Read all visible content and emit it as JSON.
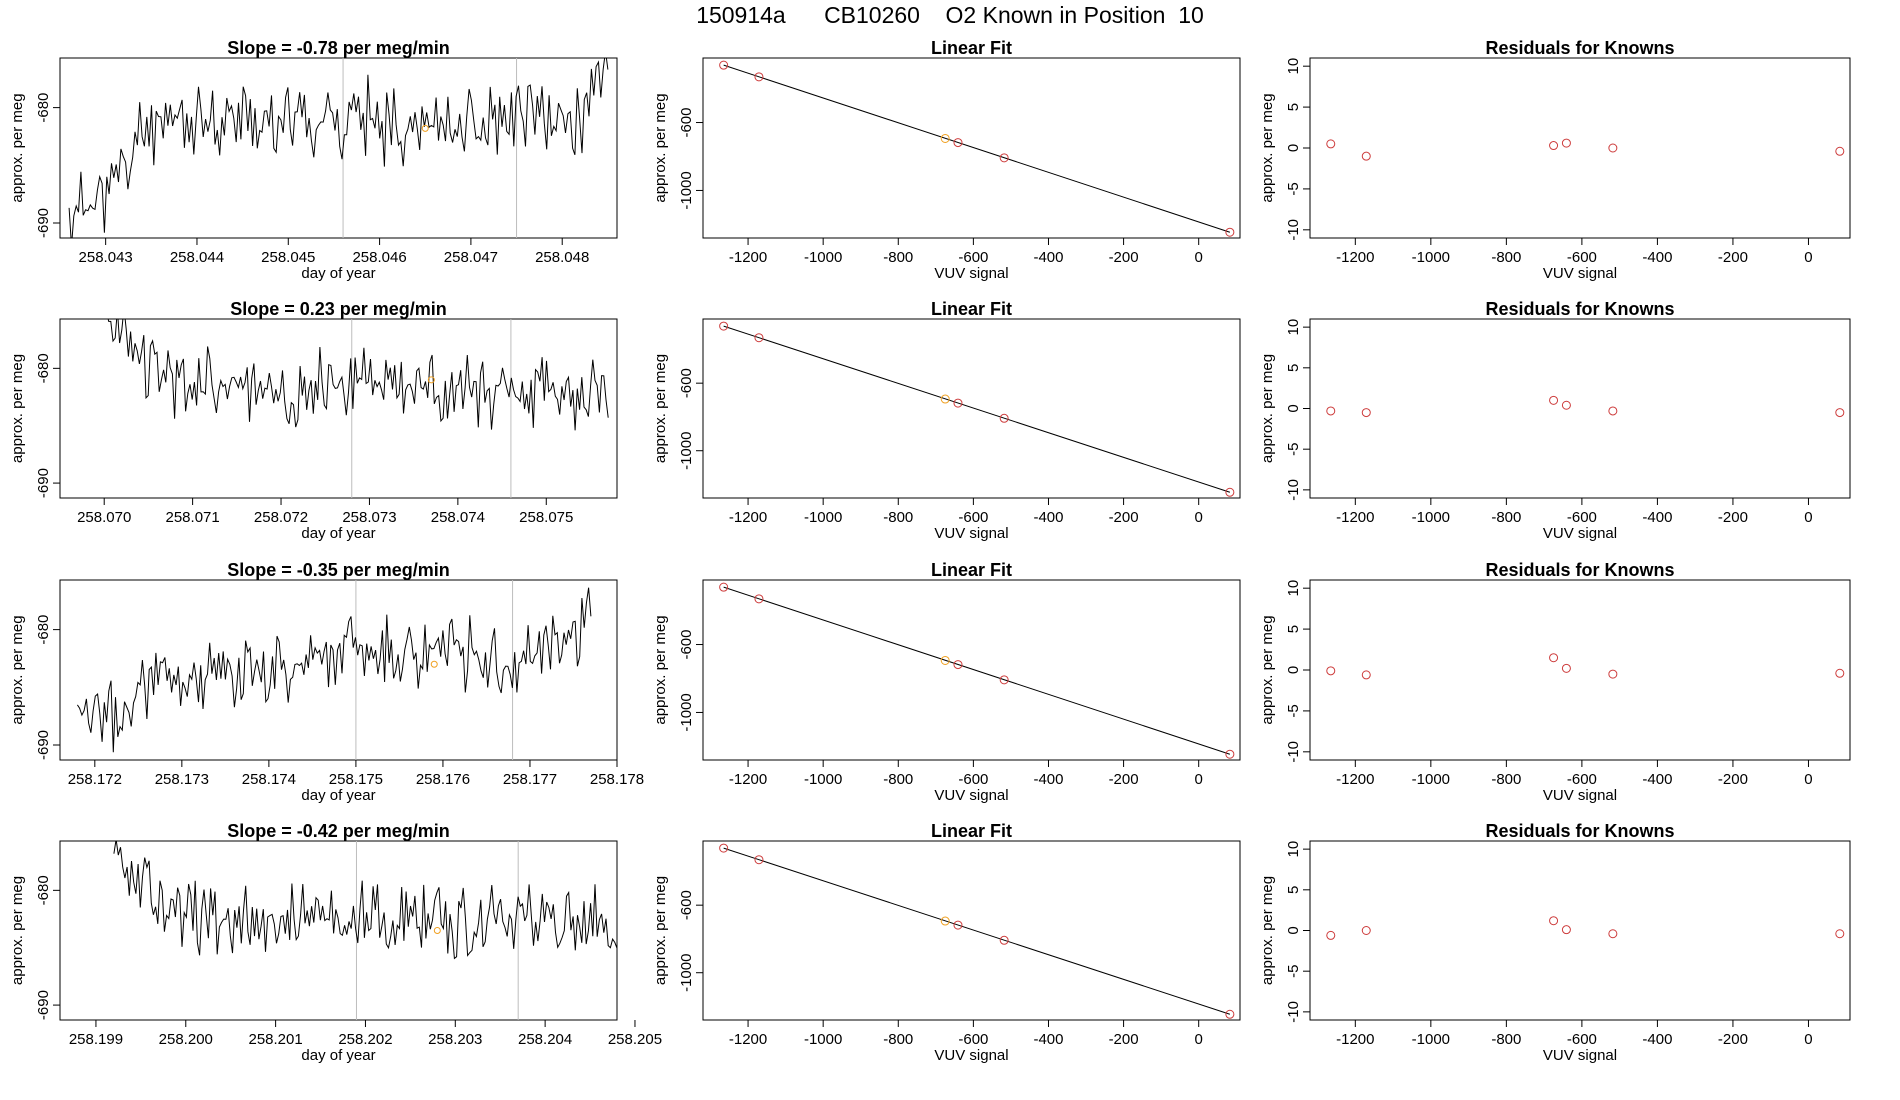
{
  "page_title": "150914a      CB10260    O2 Known in Position  10",
  "colors": {
    "line": "#000000",
    "known": "#cd3b3b",
    "highlight": "#f0a020",
    "marker": "#bdbdbd",
    "axis": "#000000"
  },
  "chart_data": [
    {
      "type": "line",
      "kind": "timeseries",
      "title": "Slope =  -0.78  per meg/min",
      "xlabel": "day of year",
      "ylabel": "approx. per meg",
      "xlim": [
        258.0425,
        258.0486
      ],
      "ylim": [
        -691.3,
        -675.7
      ],
      "x_ticks": [
        "258.043",
        "258.044",
        "258.045",
        "258.046",
        "258.047",
        "258.048"
      ],
      "x_tick_values": [
        258.043,
        258.044,
        258.045,
        258.046,
        258.047,
        258.048
      ],
      "y_ticks": [
        "-690",
        "-680"
      ],
      "y_tick_values": [
        -690,
        -680
      ],
      "markers_x": [
        258.0456,
        258.0475
      ],
      "highlight_point": [
        258.0465,
        -681.8
      ],
      "series": {
        "x_start": 258.0426,
        "x_end": 258.0485,
        "seed": 11,
        "profile": [
          [
            258.0426,
            -689.5
          ],
          [
            258.0432,
            -686.0
          ],
          [
            258.0434,
            -681.5
          ],
          [
            258.0445,
            -681.0
          ],
          [
            258.0456,
            -681.0
          ],
          [
            258.047,
            -681.5
          ],
          [
            258.0482,
            -681.0
          ],
          [
            258.0483,
            -679.5
          ],
          [
            258.0485,
            -675.7
          ]
        ]
      }
    },
    {
      "type": "scatter",
      "kind": "fit",
      "title": "Linear Fit",
      "xlabel": "VUV signal",
      "ylabel": "approx. per meg",
      "xlim": [
        -1320,
        110
      ],
      "ylim": [
        -1280,
        -220
      ],
      "x_ticks": [
        "-1200",
        "-1000",
        "-800",
        "-600",
        "-400",
        "-200",
        "0"
      ],
      "x_tick_values": [
        -1200,
        -1000,
        -800,
        -600,
        -400,
        -200,
        0
      ],
      "y_ticks": [
        "-600",
        "-1000"
      ],
      "y_tick_values": [
        -600,
        -1000
      ],
      "fit_line": [
        [
          -1265,
          -262
        ],
        [
          83,
          -1246
        ]
      ],
      "points": [
        [
          -1265,
          -262
        ],
        [
          -1171,
          -331
        ],
        [
          -675,
          -694
        ],
        [
          -641,
          -718
        ],
        [
          -518,
          -808
        ],
        [
          83,
          -1246
        ]
      ],
      "highlight_point": [
        -675,
        -694
      ]
    },
    {
      "type": "scatter",
      "kind": "residuals",
      "title": "Residuals for Knowns",
      "xlabel": "VUV signal",
      "ylabel": "approx. per meg",
      "xlim": [
        -1320,
        110
      ],
      "ylim": [
        -11,
        11
      ],
      "x_ticks": [
        "-1200",
        "-1000",
        "-800",
        "-600",
        "-400",
        "-200",
        "0"
      ],
      "x_tick_values": [
        -1200,
        -1000,
        -800,
        -600,
        -400,
        -200,
        0
      ],
      "y_ticks": [
        "10",
        "5",
        "0",
        "-5",
        "-10"
      ],
      "y_tick_values": [
        10,
        5,
        0,
        -5,
        -10
      ],
      "points": [
        [
          -1265,
          0.5
        ],
        [
          -1171,
          -1.0
        ],
        [
          -675,
          0.3
        ],
        [
          -641,
          0.6
        ],
        [
          -518,
          0.0
        ],
        [
          83,
          -0.4
        ]
      ]
    },
    {
      "type": "line",
      "kind": "timeseries",
      "title": "Slope =  0.23  per meg/min",
      "xlabel": "day of year",
      "ylabel": "approx. per meg",
      "xlim": [
        258.0695,
        258.0758
      ],
      "ylim": [
        -691.3,
        -675.7
      ],
      "x_ticks": [
        "258.070",
        "258.071",
        "258.072",
        "258.073",
        "258.074",
        "258.075"
      ],
      "x_tick_values": [
        258.07,
        258.071,
        258.072,
        258.073,
        258.074,
        258.075
      ],
      "y_ticks": [
        "-690",
        "-680"
      ],
      "y_tick_values": [
        -690,
        -680
      ],
      "markers_x": [
        258.0728,
        258.0746
      ],
      "highlight_point": [
        258.0737,
        -681.0
      ],
      "series": {
        "x_start": 258.07,
        "x_end": 258.0757,
        "seed": 23,
        "profile": [
          [
            258.07,
            -675.7
          ],
          [
            258.0702,
            -677.5
          ],
          [
            258.0705,
            -679.5
          ],
          [
            258.0708,
            -681.5
          ],
          [
            258.073,
            -681.5
          ],
          [
            258.0757,
            -682.0
          ]
        ]
      }
    },
    {
      "type": "scatter",
      "kind": "fit",
      "title": "Linear Fit",
      "xlabel": "VUV signal",
      "ylabel": "approx. per meg",
      "xlim": [
        -1320,
        110
      ],
      "ylim": [
        -1280,
        -220
      ],
      "x_ticks": [
        "-1200",
        "-1000",
        "-800",
        "-600",
        "-400",
        "-200",
        "0"
      ],
      "x_tick_values": [
        -1200,
        -1000,
        -800,
        -600,
        -400,
        -200,
        0
      ],
      "y_ticks": [
        "-600",
        "-1000"
      ],
      "y_tick_values": [
        -600,
        -1000
      ],
      "fit_line": [
        [
          -1265,
          -262
        ],
        [
          83,
          -1246
        ]
      ],
      "points": [
        [
          -1265,
          -262
        ],
        [
          -1171,
          -331
        ],
        [
          -675,
          -694
        ],
        [
          -641,
          -718
        ],
        [
          -518,
          -808
        ],
        [
          83,
          -1246
        ]
      ],
      "highlight_point": [
        -675,
        -694
      ]
    },
    {
      "type": "scatter",
      "kind": "residuals",
      "title": "Residuals for Knowns",
      "xlabel": "VUV signal",
      "ylabel": "approx. per meg",
      "xlim": [
        -1320,
        110
      ],
      "ylim": [
        -11,
        11
      ],
      "x_ticks": [
        "-1200",
        "-1000",
        "-800",
        "-600",
        "-400",
        "-200",
        "0"
      ],
      "x_tick_values": [
        -1200,
        -1000,
        -800,
        -600,
        -400,
        -200,
        0
      ],
      "y_ticks": [
        "10",
        "5",
        "0",
        "-5",
        "-10"
      ],
      "y_tick_values": [
        10,
        5,
        0,
        -5,
        -10
      ],
      "points": [
        [
          -1265,
          -0.3
        ],
        [
          -1171,
          -0.5
        ],
        [
          -675,
          1.0
        ],
        [
          -641,
          0.4
        ],
        [
          -518,
          -0.3
        ],
        [
          83,
          -0.5
        ]
      ]
    },
    {
      "type": "line",
      "kind": "timeseries",
      "title": "Slope =  -0.35  per meg/min",
      "xlabel": "day of year",
      "ylabel": "approx. per meg",
      "xlim": [
        258.1716,
        258.178
      ],
      "ylim": [
        -691.3,
        -675.7
      ],
      "x_ticks": [
        "258.172",
        "258.173",
        "258.174",
        "258.175",
        "258.176",
        "258.177",
        "258.178"
      ],
      "x_tick_values": [
        258.172,
        258.173,
        258.174,
        258.175,
        258.176,
        258.177,
        258.178
      ],
      "y_ticks": [
        "-690",
        "-680"
      ],
      "y_tick_values": [
        -690,
        -680
      ],
      "markers_x": [
        258.175,
        258.1768
      ],
      "highlight_point": [
        258.1759,
        -683.0
      ],
      "series": {
        "x_start": 258.1718,
        "x_end": 258.1777,
        "seed": 37,
        "profile": [
          [
            258.1718,
            -689.0
          ],
          [
            258.1724,
            -687.0
          ],
          [
            258.1726,
            -684.0
          ],
          [
            258.174,
            -683.5
          ],
          [
            258.175,
            -681.5
          ],
          [
            258.1762,
            -682.0
          ],
          [
            258.1768,
            -684.0
          ],
          [
            258.177,
            -682.0
          ],
          [
            258.1776,
            -680.0
          ],
          [
            258.1777,
            -675.7
          ]
        ]
      }
    },
    {
      "type": "scatter",
      "kind": "fit",
      "title": "Linear Fit",
      "xlabel": "VUV signal",
      "ylabel": "approx. per meg",
      "xlim": [
        -1320,
        110
      ],
      "ylim": [
        -1280,
        -220
      ],
      "x_ticks": [
        "-1200",
        "-1000",
        "-800",
        "-600",
        "-400",
        "-200",
        "0"
      ],
      "x_tick_values": [
        -1200,
        -1000,
        -800,
        -600,
        -400,
        -200,
        0
      ],
      "y_ticks": [
        "-600",
        "-1000"
      ],
      "y_tick_values": [
        -600,
        -1000
      ],
      "fit_line": [
        [
          -1265,
          -262
        ],
        [
          83,
          -1246
        ]
      ],
      "points": [
        [
          -1265,
          -262
        ],
        [
          -1171,
          -331
        ],
        [
          -675,
          -694
        ],
        [
          -641,
          -718
        ],
        [
          -518,
          -808
        ],
        [
          83,
          -1246
        ]
      ],
      "highlight_point": [
        -675,
        -694
      ]
    },
    {
      "type": "scatter",
      "kind": "residuals",
      "title": "Residuals for Knowns",
      "xlabel": "VUV signal",
      "ylabel": "approx. per meg",
      "xlim": [
        -1320,
        110
      ],
      "ylim": [
        -11,
        11
      ],
      "x_ticks": [
        "-1200",
        "-1000",
        "-800",
        "-600",
        "-400",
        "-200",
        "0"
      ],
      "x_tick_values": [
        -1200,
        -1000,
        -800,
        -600,
        -400,
        -200,
        0
      ],
      "y_ticks": [
        "10",
        "5",
        "0",
        "-5",
        "-10"
      ],
      "y_tick_values": [
        10,
        5,
        0,
        -5,
        -10
      ],
      "points": [
        [
          -1265,
          -0.1
        ],
        [
          -1171,
          -0.6
        ],
        [
          -675,
          1.5
        ],
        [
          -641,
          0.2
        ],
        [
          -518,
          -0.5
        ],
        [
          83,
          -0.4
        ]
      ]
    },
    {
      "type": "line",
      "kind": "timeseries",
      "title": "Slope =  -0.42  per meg/min",
      "xlabel": "day of year",
      "ylabel": "approx. per meg",
      "xlim": [
        258.1986,
        258.2048
      ],
      "ylim": [
        -691.3,
        -675.7
      ],
      "x_ticks": [
        "258.199",
        "258.200",
        "258.201",
        "258.202",
        "258.203",
        "258.204",
        "258.205"
      ],
      "x_tick_values": [
        258.199,
        258.2,
        258.201,
        258.202,
        258.203,
        258.204,
        258.205
      ],
      "y_ticks": [
        "-690",
        "-680"
      ],
      "y_tick_values": [
        -690,
        -680
      ],
      "markers_x": [
        258.2019,
        258.2037
      ],
      "highlight_point": [
        258.2028,
        -683.5
      ],
      "series": {
        "x_start": 258.1992,
        "x_end": 258.2048,
        "seed": 53,
        "profile": [
          [
            258.1992,
            -675.7
          ],
          [
            258.1994,
            -678.0
          ],
          [
            258.1997,
            -681.0
          ],
          [
            258.2,
            -682.5
          ],
          [
            258.202,
            -682.5
          ],
          [
            258.2046,
            -683.0
          ],
          [
            258.2048,
            -685.5
          ]
        ]
      }
    },
    {
      "type": "scatter",
      "kind": "fit",
      "title": "Linear Fit",
      "xlabel": "VUV signal",
      "ylabel": "approx. per meg",
      "xlim": [
        -1320,
        110
      ],
      "ylim": [
        -1280,
        -220
      ],
      "x_ticks": [
        "-1200",
        "-1000",
        "-800",
        "-600",
        "-400",
        "-200",
        "0"
      ],
      "x_tick_values": [
        -1200,
        -1000,
        -800,
        -600,
        -400,
        -200,
        0
      ],
      "y_ticks": [
        "-600",
        "-1000"
      ],
      "y_tick_values": [
        -600,
        -1000
      ],
      "fit_line": [
        [
          -1265,
          -262
        ],
        [
          83,
          -1246
        ]
      ],
      "points": [
        [
          -1265,
          -262
        ],
        [
          -1171,
          -331
        ],
        [
          -675,
          -694
        ],
        [
          -641,
          -718
        ],
        [
          -518,
          -808
        ],
        [
          83,
          -1246
        ]
      ],
      "highlight_point": [
        -675,
        -694
      ]
    },
    {
      "type": "scatter",
      "kind": "residuals",
      "title": "Residuals for Knowns",
      "xlabel": "VUV signal",
      "ylabel": "approx. per meg",
      "xlim": [
        -1320,
        110
      ],
      "ylim": [
        -11,
        11
      ],
      "x_ticks": [
        "-1200",
        "-1000",
        "-800",
        "-600",
        "-400",
        "-200",
        "0"
      ],
      "x_tick_values": [
        -1200,
        -1000,
        -800,
        -600,
        -400,
        -200,
        0
      ],
      "y_ticks": [
        "10",
        "5",
        "0",
        "-5",
        "-10"
      ],
      "y_tick_values": [
        10,
        5,
        0,
        -5,
        -10
      ],
      "points": [
        [
          -1265,
          -0.6
        ],
        [
          -1171,
          0.0
        ],
        [
          -675,
          1.2
        ],
        [
          -641,
          0.1
        ],
        [
          -518,
          -0.4
        ],
        [
          83,
          -0.4
        ]
      ]
    }
  ]
}
